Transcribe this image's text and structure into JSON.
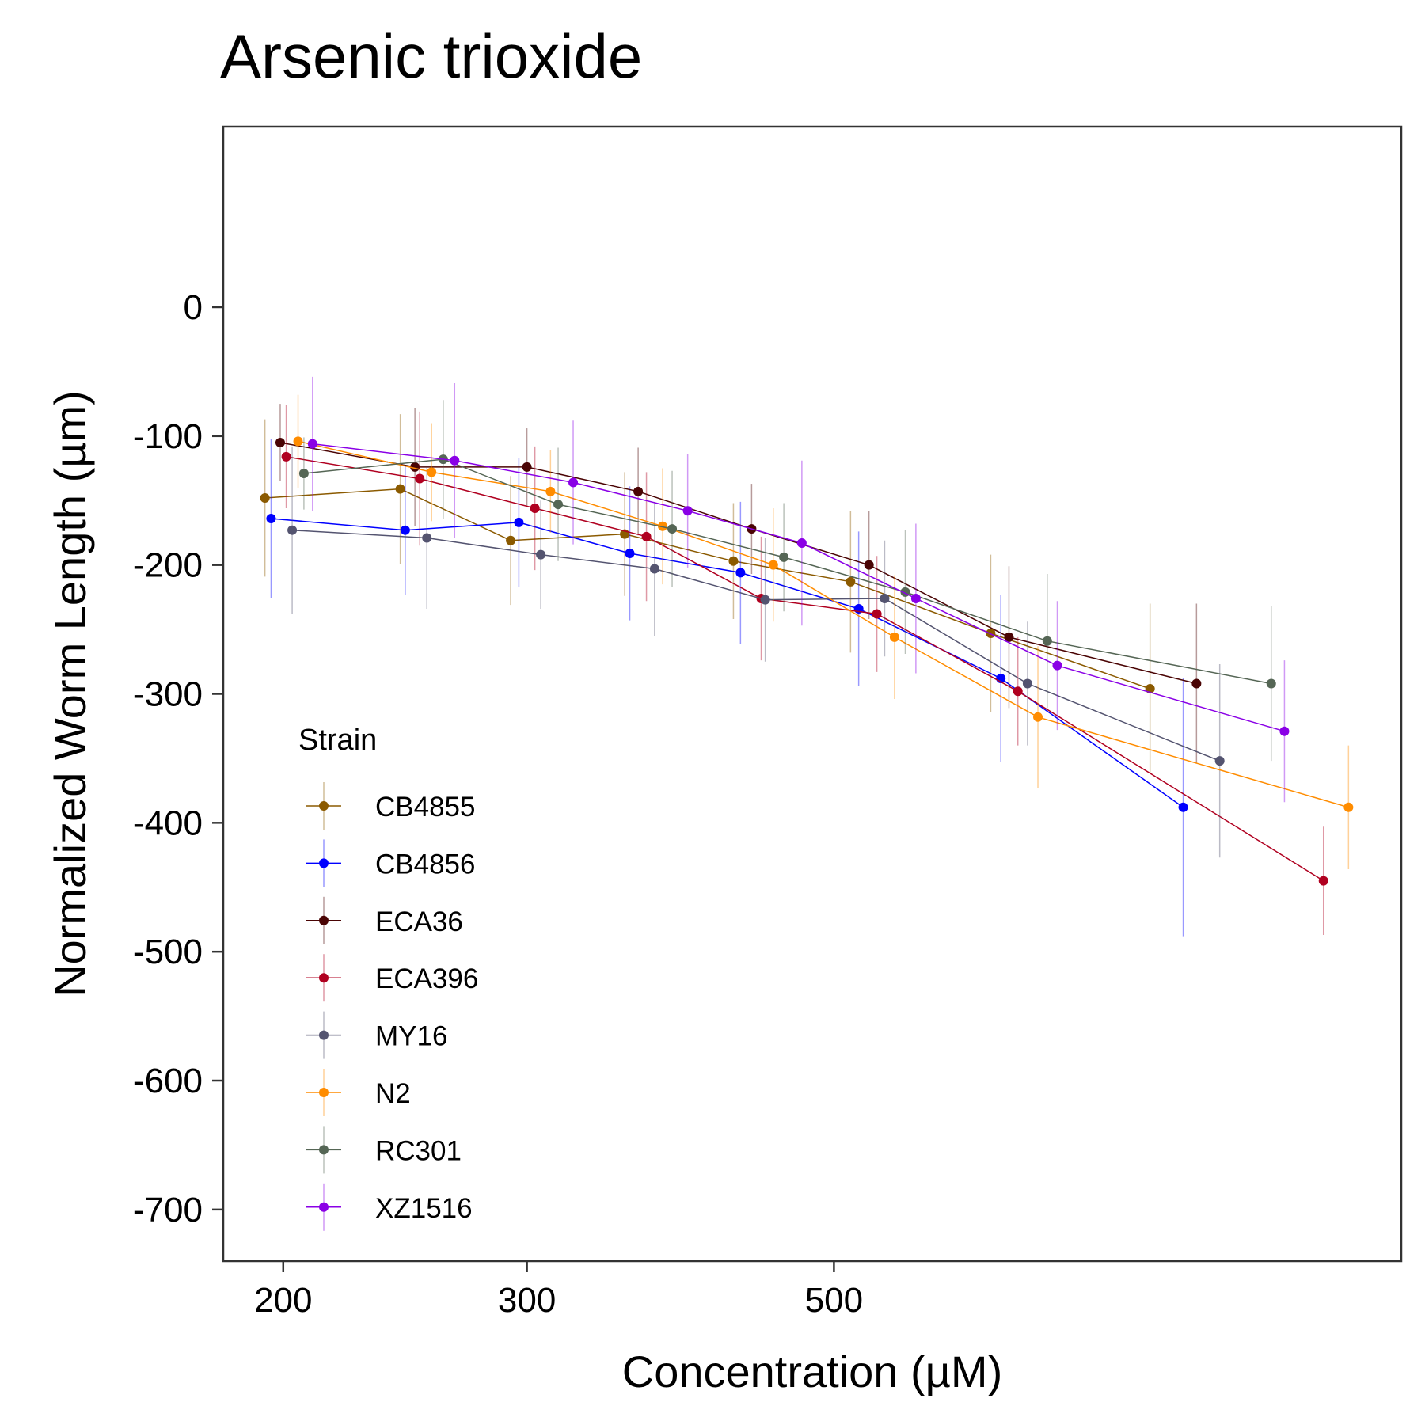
{
  "chart_data": {
    "type": "line",
    "title": "Arsenic trioxide",
    "xlabel": "Concentration (µM)",
    "ylabel": "Normalized Worm Length (µm)",
    "x_scale": "log",
    "xlim": [
      181,
      1285
    ],
    "ylim": [
      -740,
      140
    ],
    "x_ticks": [
      200,
      300,
      500
    ],
    "x_tick_labels": [
      "200",
      "300",
      "500"
    ],
    "y_ticks": [
      0,
      -100,
      -200,
      -300,
      -400,
      -500,
      -600,
      -700
    ],
    "y_tick_labels": [
      "0",
      "-100",
      "-200",
      "-300",
      "-400",
      "-500",
      "-600",
      "-700"
    ],
    "grid": false,
    "legend": {
      "title": "Strain",
      "position": "bottom-left-inside"
    },
    "x": [
      200,
      250,
      300,
      375,
      450,
      550,
      700,
      1000
    ],
    "series": [
      {
        "name": "CB4855",
        "color": "#8b5a00",
        "x": [
          194,
          243,
          292,
          353,
          423,
          514,
          649,
          846
        ],
        "values": [
          -148,
          -141,
          -181,
          -176,
          -197,
          -213,
          -253,
          -296
        ],
        "err": [
          61,
          58,
          50,
          48,
          45,
          55,
          61,
          66
        ]
      },
      {
        "name": "CB4856",
        "color": "#0000ff",
        "x": [
          196,
          245,
          296,
          356,
          428,
          521,
          660,
          894
        ],
        "values": [
          -164,
          -173,
          -167,
          -191,
          -206,
          -234,
          -288,
          -388
        ],
        "err": [
          62,
          50,
          50,
          52,
          55,
          60,
          65,
          100
        ]
      },
      {
        "name": "ECA36",
        "color": "#4a0404",
        "x": [
          199,
          249,
          300,
          361,
          436,
          530,
          669,
          914
        ],
        "values": [
          -105,
          -124,
          -124,
          -143,
          -172,
          -200,
          -256,
          -292
        ],
        "err": [
          30,
          46,
          30,
          34,
          35,
          42,
          55,
          62
        ]
      },
      {
        "name": "ECA396",
        "color": "#b00020",
        "x": [
          201,
          251,
          304,
          366,
          443,
          537,
          679,
          1129
        ],
        "values": [
          -116,
          -133,
          -156,
          -178,
          -226,
          -238,
          -298,
          -445
        ],
        "err": [
          40,
          52,
          48,
          50,
          48,
          45,
          42,
          42
        ]
      },
      {
        "name": "MY16",
        "color": "#545470",
        "x": [
          203,
          254,
          307,
          371,
          446,
          544,
          690,
          950
        ],
        "values": [
          -173,
          -179,
          -192,
          -203,
          -227,
          -226,
          -292,
          -352
        ],
        "err": [
          65,
          55,
          42,
          52,
          48,
          45,
          48,
          75
        ]
      },
      {
        "name": "N2",
        "color": "#ff8c00",
        "x": [
          205,
          256,
          312,
          376,
          452,
          553,
          702,
          1177
        ],
        "values": [
          -104,
          -128,
          -143,
          -170,
          -200,
          -256,
          -318,
          -388
        ],
        "err": [
          36,
          38,
          32,
          45,
          44,
          48,
          55,
          48
        ]
      },
      {
        "name": "RC301",
        "color": "#556655",
        "x": [
          207,
          261,
          316,
          382,
          460,
          563,
          713,
          1035
        ],
        "values": [
          -129,
          -118,
          -153,
          -172,
          -194,
          -221,
          -259,
          -292
        ],
        "err": [
          28,
          46,
          44,
          45,
          42,
          48,
          52,
          60
        ]
      },
      {
        "name": "XZ1516",
        "color": "#8a00e6",
        "x": [
          210,
          266,
          324,
          392,
          474,
          573,
          725,
          1058
        ],
        "values": [
          -106,
          -119,
          -136,
          -158,
          -183,
          -226,
          -278,
          -329
        ],
        "err": [
          52,
          60,
          48,
          44,
          64,
          58,
          50,
          55
        ]
      }
    ]
  }
}
